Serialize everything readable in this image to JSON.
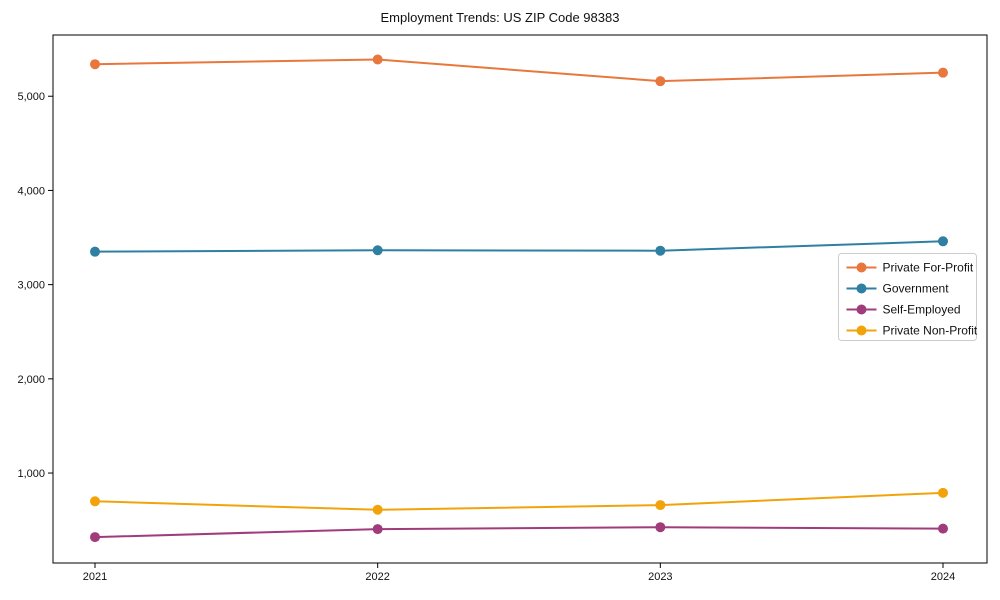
{
  "page": {
    "background": "#ffffff",
    "frame_color": "#000000",
    "text_color": "#111111",
    "legend_border_color": "#cccccc",
    "legend_background": "#ffffff"
  },
  "chart_data": {
    "type": "line",
    "title": "Employment Trends: US ZIP Code 98383",
    "xlabel": "",
    "ylabel": "",
    "x": [
      2021,
      2022,
      2023,
      2024
    ],
    "x_tick_labels": [
      "2021",
      "2022",
      "2023",
      "2024"
    ],
    "y_ticks": [
      1000,
      2000,
      3000,
      4000,
      5000
    ],
    "y_tick_labels": [
      "1,000",
      "2,000",
      "3,000",
      "4,000",
      "5,000"
    ],
    "ylim": [
      45,
      5650
    ],
    "grid": false,
    "legend_position": "right-middle",
    "marker": "circle",
    "series": [
      {
        "name": "Private For-Profit",
        "color": "#e8773d",
        "values": [
          5340,
          5390,
          5160,
          5250
        ]
      },
      {
        "name": "Government",
        "color": "#2f7fa3",
        "values": [
          3350,
          3365,
          3360,
          3460
        ]
      },
      {
        "name": "Self-Employed",
        "color": "#a03c7c",
        "values": [
          320,
          405,
          425,
          410
        ]
      },
      {
        "name": "Private Non-Profit",
        "color": "#f2a30b",
        "values": [
          700,
          610,
          660,
          790
        ]
      }
    ]
  }
}
